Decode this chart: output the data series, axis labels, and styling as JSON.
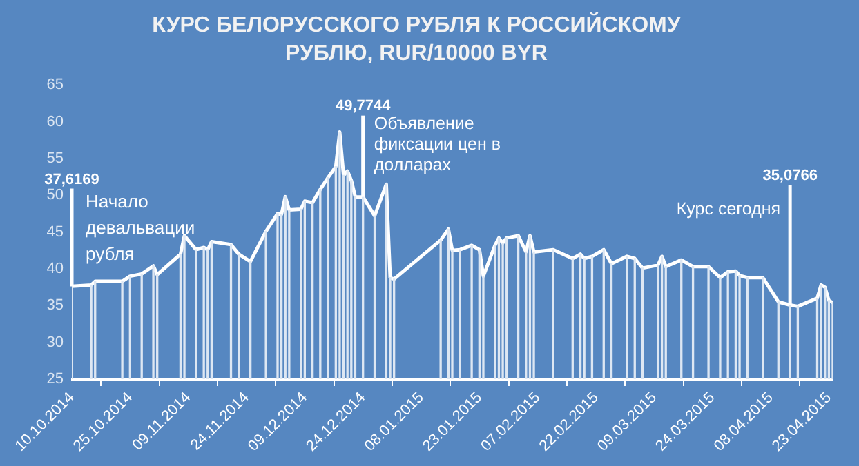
{
  "chart_data": {
    "type": "line",
    "title": "КУРС БЕЛОРУССКОГО РУБЛЯ К РОССИЙСКОМУ РУБЛЮ, RUR/10000 BYR",
    "x": [
      "2014-10-10",
      "2014-10-15",
      "2014-10-16",
      "2014-10-23",
      "2014-10-25",
      "2014-10-28",
      "2014-10-31",
      "2014-11-01",
      "2014-11-07",
      "2014-11-08",
      "2014-11-11",
      "2014-11-13",
      "2014-11-14",
      "2014-11-15",
      "2014-11-20",
      "2014-11-22",
      "2014-11-25",
      "2014-11-29",
      "2014-12-02",
      "2014-12-03",
      "2014-12-04",
      "2014-12-05",
      "2014-12-08",
      "2014-12-09",
      "2014-12-11",
      "2014-12-13",
      "2014-12-15",
      "2014-12-17",
      "2014-12-18",
      "2014-12-19",
      "2014-12-20",
      "2014-12-21",
      "2014-12-22",
      "2014-12-24",
      "2014-12-27",
      "2014-12-30",
      "2014-12-31",
      "2015-01-01",
      "2015-01-13",
      "2015-01-15",
      "2015-01-16",
      "2015-01-18",
      "2015-01-21",
      "2015-01-23",
      "2015-01-24",
      "2015-01-27",
      "2015-01-28",
      "2015-01-29",
      "2015-01-30",
      "2015-02-02",
      "2015-02-04",
      "2015-02-05",
      "2015-02-06",
      "2015-02-11",
      "2015-02-16",
      "2015-02-18",
      "2015-02-19",
      "2015-02-21",
      "2015-02-24",
      "2015-02-26",
      "2015-03-02",
      "2015-03-04",
      "2015-03-06",
      "2015-03-10",
      "2015-03-11",
      "2015-03-12",
      "2015-03-16",
      "2015-03-19",
      "2015-03-23",
      "2015-03-26",
      "2015-03-28",
      "2015-03-30",
      "2015-03-31",
      "2015-04-02",
      "2015-04-06",
      "2015-04-10",
      "2015-04-13",
      "2015-04-15",
      "2015-04-20",
      "2015-04-21",
      "2015-04-22",
      "2015-04-23",
      "2015-04-24"
    ],
    "series": [
      {
        "type": "bar",
        "color": "#dde7f3",
        "values": [
          37.6169,
          37.8,
          38.3,
          38.3,
          39.0,
          39.3,
          40.4,
          39.2,
          42.0,
          44.5,
          42.6,
          42.9,
          42.6,
          43.7,
          43.3,
          42.0,
          41.0,
          45.1,
          47.5,
          47.4,
          49.8,
          48.0,
          48.1,
          49.2,
          49.0,
          50.8,
          52.4,
          53.9,
          58.6,
          52.7,
          53.3,
          52.0,
          49.8,
          49.7744,
          47.2,
          51.5,
          38.8,
          38.6,
          43.9,
          45.4,
          42.5,
          42.6,
          43.2,
          42.6,
          39.0,
          43.2,
          44.2,
          43.5,
          44.2,
          44.5,
          42.3,
          44.5,
          42.3,
          42.6,
          41.4,
          42.0,
          41.4,
          41.7,
          42.6,
          40.7,
          41.7,
          41.4,
          40.1,
          40.5,
          41.7,
          40.3,
          41.2,
          40.3,
          40.3,
          38.8,
          39.6,
          39.7,
          39.1,
          38.8,
          38.8,
          35.5,
          35.0766,
          34.9,
          36.0,
          37.8,
          37.5,
          35.7,
          35.4
        ]
      },
      {
        "color": "#ffffff",
        "values": [
          37.6169,
          37.8,
          38.3,
          38.3,
          39.0,
          39.3,
          40.4,
          39.2,
          42.0,
          44.5,
          42.6,
          42.9,
          42.6,
          43.7,
          43.3,
          42.0,
          41.0,
          45.1,
          47.5,
          47.4,
          49.8,
          48.0,
          48.1,
          49.2,
          49.0,
          50.8,
          52.4,
          53.9,
          58.6,
          52.7,
          53.3,
          52.0,
          49.8,
          49.7744,
          47.2,
          51.5,
          38.8,
          38.6,
          43.9,
          45.4,
          42.5,
          42.6,
          43.2,
          42.6,
          39.0,
          43.2,
          44.2,
          43.5,
          44.2,
          44.5,
          42.3,
          44.5,
          42.3,
          42.6,
          41.4,
          42.0,
          41.4,
          41.7,
          42.6,
          40.7,
          41.7,
          41.4,
          40.1,
          40.5,
          41.7,
          40.3,
          41.2,
          40.3,
          40.3,
          38.8,
          39.6,
          39.7,
          39.1,
          38.8,
          38.8,
          35.5,
          35.0766,
          34.9,
          36.0,
          37.8,
          37.5,
          35.7,
          35.4
        ]
      }
    ],
    "xlim": [
      "2014-10-10",
      "2015-04-24"
    ],
    "xticks": [
      {
        "value": "2014-10-10",
        "label": "10.10.2014"
      },
      {
        "value": "2014-10-25",
        "label": "25.10.2014"
      },
      {
        "value": "2014-11-09",
        "label": "09.11.2014"
      },
      {
        "value": "2014-11-24",
        "label": "24.11.2014"
      },
      {
        "value": "2014-12-09",
        "label": "09.12.2014"
      },
      {
        "value": "2014-12-24",
        "label": "24.12.2014"
      },
      {
        "value": "2015-01-08",
        "label": "08.01.2015"
      },
      {
        "value": "2015-01-23",
        "label": "23.01.2015"
      },
      {
        "value": "2015-02-07",
        "label": "07.02.2015"
      },
      {
        "value": "2015-02-22",
        "label": "22.02.2015"
      },
      {
        "value": "2015-03-09",
        "label": "09.03.2015"
      },
      {
        "value": "2015-03-24",
        "label": "24.03.2015"
      },
      {
        "value": "2015-04-08",
        "label": "08.04.2015"
      },
      {
        "value": "2015-04-23",
        "label": "23.04.2015"
      }
    ],
    "ylim": [
      25,
      65
    ],
    "yticks": [
      25,
      30,
      35,
      40,
      45,
      50,
      55,
      60,
      65
    ],
    "marker": "none",
    "line_style": "solid",
    "annotations": [
      {
        "text": "37,6169",
        "x": "2014-10-10",
        "y": 37.6169
      },
      {
        "text": "Начало девальвации рубля",
        "x": "2014-10-10",
        "y": 37.6169
      },
      {
        "text": "49,7744",
        "x": "2014-12-24",
        "y": 49.7744
      },
      {
        "text": "Объявление фиксации цен в долларах",
        "x": "2014-12-24",
        "y": 49.7744
      },
      {
        "text": "35,0766",
        "x": "2015-04-13",
        "y": 35.0766
      },
      {
        "text": "Курс сегодня",
        "x": "2015-04-13",
        "y": 35.0766
      }
    ]
  }
}
